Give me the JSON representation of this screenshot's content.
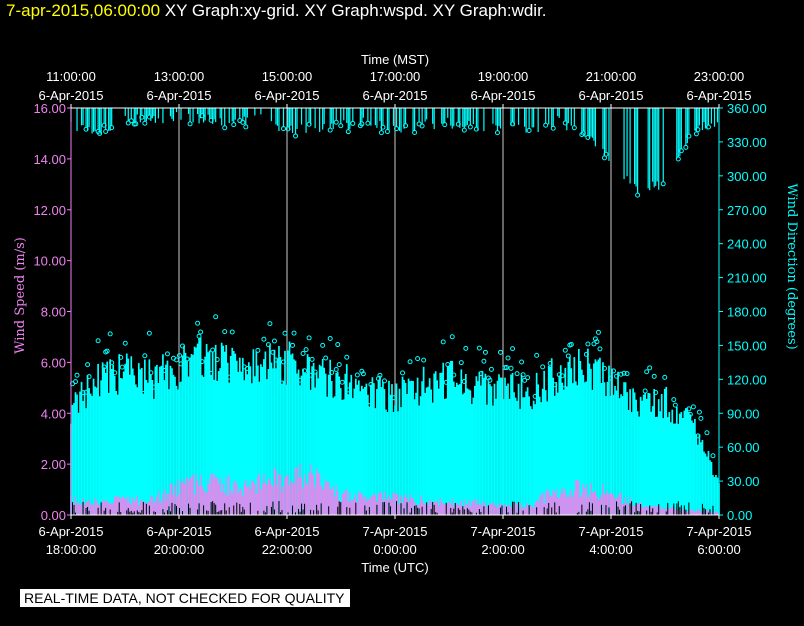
{
  "header": {
    "timestamp": "7-apr-2015,06:00:00",
    "graph_titles": "XY Graph:xy-grid.  XY Graph:wspd.  XY Graph:wdir."
  },
  "disclaimer": "REAL-TIME DATA, NOT CHECKED FOR QUALITY",
  "colors": {
    "wind_speed": "#ee82ee",
    "wind_direction": "#00ffff",
    "grid": "#ffffff",
    "background": "#000000"
  },
  "chart_data": {
    "type": "scatter",
    "top_axis": {
      "label": "Time (MST)",
      "ticks": [
        {
          "time": "11:00:00",
          "date": "6-Apr-2015"
        },
        {
          "time": "13:00:00",
          "date": "6-Apr-2015"
        },
        {
          "time": "15:00:00",
          "date": "6-Apr-2015"
        },
        {
          "time": "17:00:00",
          "date": "6-Apr-2015"
        },
        {
          "time": "19:00:00",
          "date": "6-Apr-2015"
        },
        {
          "time": "21:00:00",
          "date": "6-Apr-2015"
        },
        {
          "time": "23:00:00",
          "date": "6-Apr-2015"
        }
      ]
    },
    "bottom_axis": {
      "label": "Time (UTC)",
      "ticks": [
        {
          "date": "6-Apr-2015",
          "time": "18:00:00"
        },
        {
          "date": "6-Apr-2015",
          "time": "20:00:00"
        },
        {
          "date": "6-Apr-2015",
          "time": "22:00:00"
        },
        {
          "date": "7-Apr-2015",
          "time": "0:00:00"
        },
        {
          "date": "7-Apr-2015",
          "time": "2:00:00"
        },
        {
          "date": "7-Apr-2015",
          "time": "4:00:00"
        },
        {
          "date": "7-Apr-2015",
          "time": "6:00:00"
        }
      ],
      "range_hours": [
        0,
        12
      ]
    },
    "left_axis": {
      "label": "Wind Speed (m/s)",
      "ylim": [
        0,
        16
      ],
      "ticks": [
        "0.00",
        "2.00",
        "4.00",
        "6.00",
        "8.00",
        "10.00",
        "12.00",
        "14.00",
        "16.00"
      ]
    },
    "right_axis": {
      "label": "Wind Direction (degrees)",
      "ylim": [
        0,
        360
      ],
      "ticks": [
        "0.00",
        "30.00",
        "60.00",
        "90.00",
        "120.00",
        "150.00",
        "180.00",
        "210.00",
        "240.00",
        "270.00",
        "300.00",
        "330.00",
        "360.00"
      ]
    },
    "grid": "vertical",
    "series": [
      {
        "name": "Wind Speed",
        "axis": "left",
        "marker": "bars",
        "x_hours": [
          0,
          0.5,
          1,
          1.5,
          2,
          2.5,
          3,
          3.5,
          4,
          4.5,
          5,
          5.5,
          6,
          6.5,
          7,
          7.5,
          8,
          8.5,
          9,
          9.5,
          10,
          10.5,
          11,
          11.5,
          12
        ],
        "values": [
          0.6,
          0.5,
          0.6,
          0.6,
          1.2,
          1.3,
          1.2,
          1.4,
          1.5,
          1.6,
          0.8,
          0.8,
          0.7,
          0.6,
          0.5,
          0.5,
          0.4,
          0.4,
          1.0,
          1.1,
          0.9,
          0.4,
          0.3,
          0.2,
          0.1
        ]
      },
      {
        "name": "Wind Direction",
        "axis": "right",
        "marker": "circles",
        "x_hours": [
          0,
          0.5,
          1,
          1.5,
          2,
          2.5,
          3,
          3.5,
          4,
          4.5,
          5,
          5.5,
          6,
          6.5,
          7,
          7.5,
          8,
          8.5,
          9,
          9.5,
          10,
          10.5,
          11,
          11.5,
          12
        ],
        "values_low": [
          0,
          0,
          0,
          0,
          0,
          0,
          0,
          0,
          0,
          0,
          0,
          0,
          0,
          0,
          0,
          0,
          0,
          0,
          0,
          0,
          0,
          0,
          0,
          0,
          0
        ],
        "values_high": [
          95,
          120,
          125,
          120,
          130,
          140,
          135,
          130,
          135,
          125,
          120,
          110,
          105,
          115,
          120,
          110,
          115,
          105,
          125,
          130,
          120,
          95,
          100,
          80,
          30
        ],
        "values_near_max": [
          350,
          345,
          355,
          355,
          358,
          355,
          352,
          355,
          345,
          348,
          350,
          352,
          345,
          350,
          352,
          348,
          350,
          345,
          355,
          340,
          320,
          290,
          300,
          345,
          355
        ]
      }
    ]
  }
}
